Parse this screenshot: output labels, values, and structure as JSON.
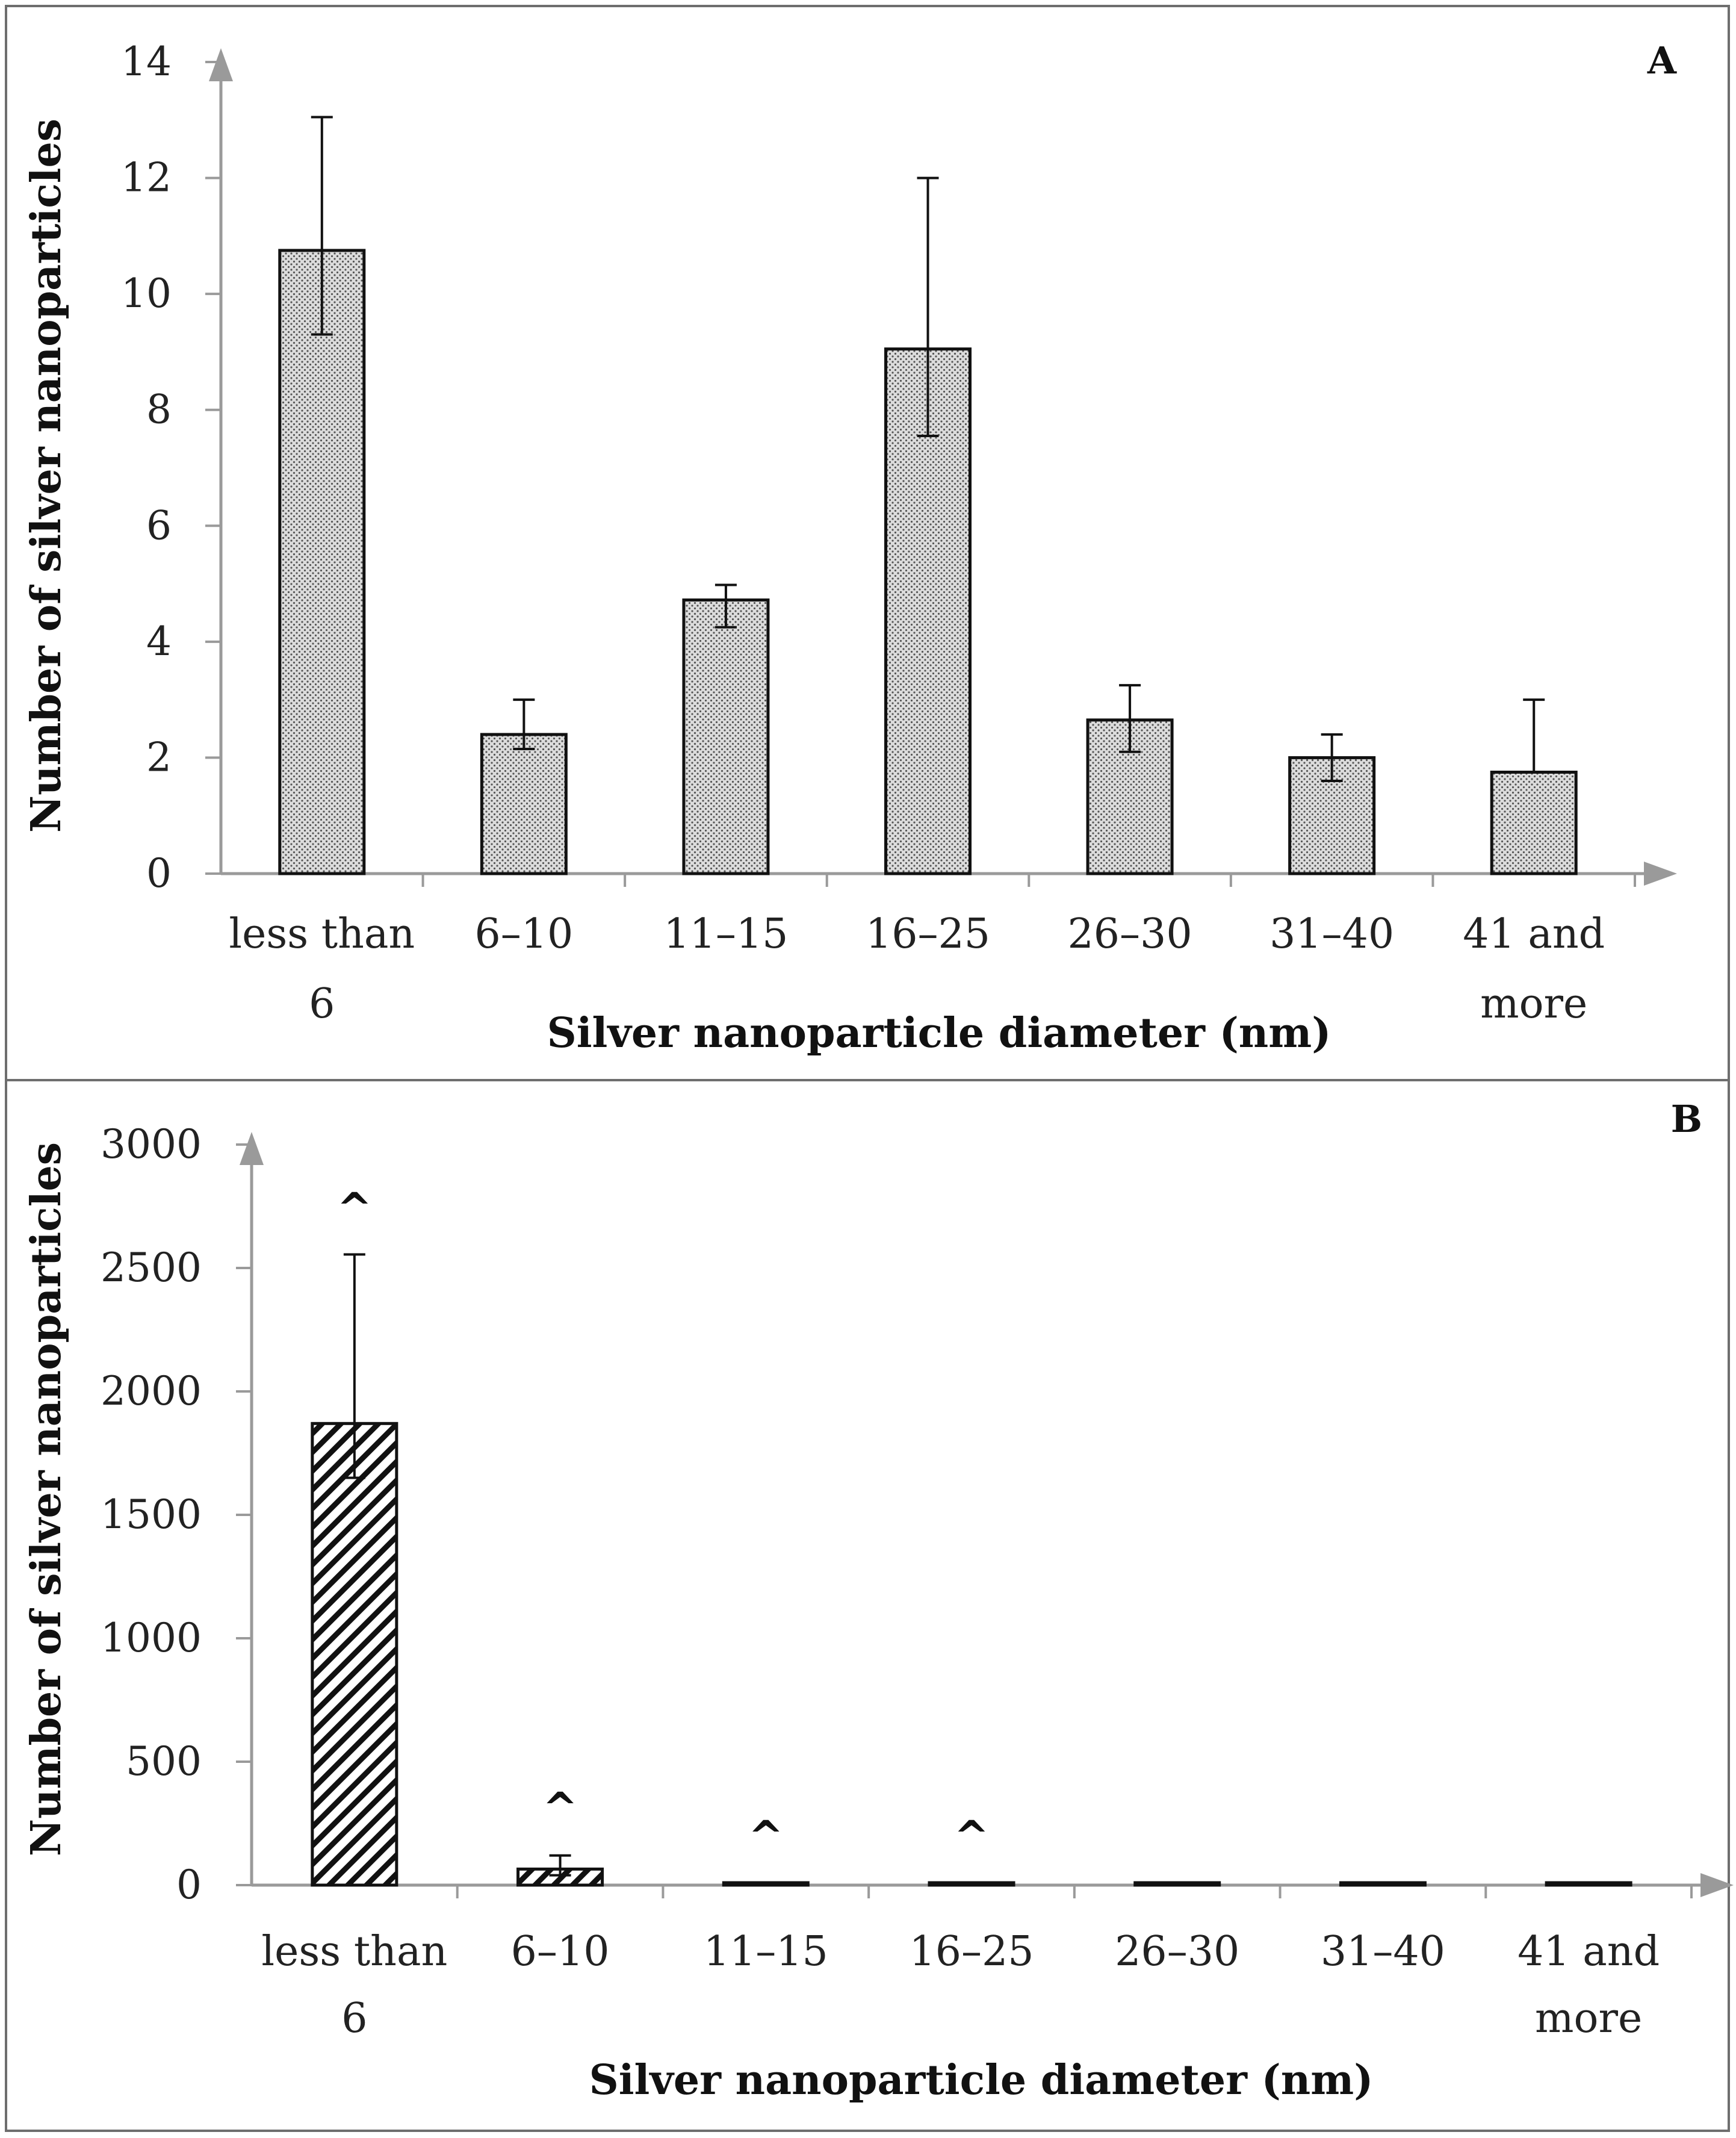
{
  "chart_data": [
    {
      "type": "bar",
      "panel_label": "A",
      "categories": [
        [
          "less than",
          "6"
        ],
        [
          "6–10"
        ],
        [
          "11–15"
        ],
        [
          "16–25"
        ],
        [
          "26–30"
        ],
        [
          "31–40"
        ],
        [
          "41 and",
          "more"
        ]
      ],
      "values": [
        10.75,
        2.4,
        4.72,
        9.05,
        2.65,
        2.0,
        1.75
      ],
      "error_low": [
        9.3,
        2.15,
        4.25,
        7.55,
        2.1,
        1.6,
        1.75
      ],
      "error_high": [
        13.05,
        3.0,
        4.98,
        12.0,
        3.25,
        2.4,
        3.0
      ],
      "markers": [
        "",
        "",
        "",
        "",
        "",
        "",
        ""
      ],
      "ylim": [
        0,
        14
      ],
      "yticks": [
        0,
        2,
        4,
        6,
        8,
        10,
        12,
        14
      ],
      "ytick_labels": [
        "0",
        "2",
        "4",
        "6",
        "8",
        "10",
        "12",
        "14"
      ],
      "xlabel": "Silver nanoparticle diameter (nm)",
      "ylabel": "Number of silver nanoparticles",
      "fill_pattern": "dots",
      "bar_color": "#e2e2e2"
    },
    {
      "type": "bar",
      "panel_label": "B",
      "categories": [
        [
          "less than",
          "6"
        ],
        [
          "6–10"
        ],
        [
          "11–15"
        ],
        [
          "16–25"
        ],
        [
          "26–30"
        ],
        [
          "31–40"
        ],
        [
          "41 and",
          "more"
        ]
      ],
      "values": [
        1870,
        65,
        5,
        5,
        4,
        4,
        4
      ],
      "error_low": [
        1650,
        40,
        5,
        5,
        4,
        4,
        4
      ],
      "error_high": [
        2555,
        120,
        5,
        5,
        4,
        4,
        4
      ],
      "markers": [
        "^",
        "^",
        "^",
        "^",
        "",
        "",
        ""
      ],
      "ylim": [
        0,
        3000
      ],
      "yticks": [
        0,
        500,
        1000,
        1500,
        2000,
        2500,
        3000
      ],
      "ytick_labels": [
        "0",
        "500",
        "1000",
        "1500",
        "2000",
        "2500",
        "3000"
      ],
      "xlabel": "Silver nanoparticle diameter (nm)",
      "ylabel": "Number of silver nanoparticles",
      "fill_pattern": "diagonal-hatch",
      "bar_color": "#ffffff"
    }
  ],
  "colors": {
    "axis": "#9a9a9a",
    "bar_edge": "#111111",
    "frame": "#6e6e6e"
  }
}
